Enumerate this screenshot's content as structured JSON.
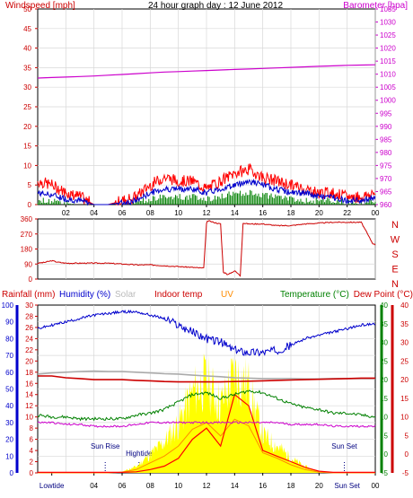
{
  "chart_data": [
    {
      "type": "line",
      "title": "24 hour graph day : 12 June 2012",
      "left_label": "Windspeed [mph]",
      "right_label": "Barometer [hpa]",
      "y_left_ticks": [
        "0",
        "5",
        "10",
        "15",
        "20",
        "25",
        "30",
        "35",
        "40",
        "45",
        "50"
      ],
      "y_right_ticks": [
        "960",
        "965",
        "970",
        "975",
        "980",
        "985",
        "990",
        "995",
        "1000",
        "1005",
        "1010",
        "1015",
        "1020",
        "1025",
        "1030",
        "1035"
      ],
      "ylim_left": [
        0,
        50
      ],
      "ylim_right": [
        960,
        1035
      ],
      "x_tick_labels": [
        "02",
        "04",
        "06",
        "08",
        "10",
        "12",
        "14",
        "16",
        "18",
        "20",
        "22",
        "00"
      ],
      "hours": [
        0,
        1,
        2,
        3,
        4,
        5,
        6,
        7,
        8,
        9,
        10,
        11,
        12,
        13,
        14,
        15,
        16,
        17,
        18,
        19,
        20,
        21,
        22,
        23,
        24
      ],
      "colors": {
        "gust": "#ff0000",
        "average": "#0000cc",
        "wind_low": "#008000",
        "barometer": "#cc00cc",
        "left_axis": "#cc0000",
        "right_axis": "#cc00cc"
      },
      "series": [
        {
          "name": "Windspeed",
          "values": [
            6,
            5,
            3,
            2,
            0,
            0,
            1,
            2,
            5,
            7,
            6,
            6,
            4,
            6,
            8,
            9,
            7,
            6,
            5,
            4,
            3,
            3,
            2,
            2,
            3
          ]
        },
        {
          "name": "Barometer",
          "values": [
            1008.5,
            1008.7,
            1008.9,
            1009.1,
            1009.3,
            1009.6,
            1009.9,
            1010.2,
            1010.5,
            1010.8,
            1011.0,
            1011.2,
            1011.4,
            1011.6,
            1011.8,
            1012.0,
            1012.2,
            1012.4,
            1012.6,
            1012.8,
            1013.0,
            1013.2,
            1013.4,
            1013.5,
            1013.6
          ]
        }
      ],
      "wind_average": [
        3,
        2.5,
        1.5,
        1,
        0,
        0,
        0.5,
        1,
        3,
        4,
        4,
        4,
        3,
        4,
        5,
        6,
        5,
        4,
        3,
        3,
        2,
        2,
        1,
        1,
        2
      ],
      "wind_low": [
        1,
        1,
        0.5,
        0,
        0,
        0,
        0,
        0.5,
        1.5,
        2,
        2,
        2,
        1.5,
        2,
        3,
        3,
        2.5,
        2,
        1.5,
        1,
        1,
        1,
        0.5,
        0.5,
        1
      ]
    },
    {
      "type": "line",
      "name": "Wind direction",
      "y_tick_labels": [
        "0",
        "90",
        "180",
        "270",
        "360"
      ],
      "right_labels": [
        "N",
        "W",
        "S",
        "E",
        "N"
      ],
      "ylim": [
        0,
        360
      ],
      "x_tick_labels": [
        "02",
        "04",
        "06",
        "08",
        "10",
        "12",
        "14",
        "16",
        "18",
        "20",
        "22",
        "00"
      ],
      "x": [
        0,
        0.5,
        1,
        1.5,
        2,
        3,
        4,
        5,
        6,
        7,
        8,
        9,
        10,
        11,
        11.8,
        12,
        12.1,
        12.5,
        13,
        13.2,
        13.4,
        13.5,
        14,
        14.4,
        14.6,
        15,
        16,
        17,
        18,
        19,
        20,
        21,
        22,
        23,
        23.8,
        24
      ],
      "values": [
        95,
        100,
        110,
        100,
        95,
        95,
        95,
        95,
        90,
        85,
        85,
        80,
        75,
        70,
        65,
        330,
        350,
        340,
        330,
        40,
        35,
        25,
        50,
        20,
        335,
        330,
        330,
        320,
        320,
        330,
        335,
        340,
        340,
        340,
        215,
        205
      ],
      "color": "#cc0000"
    },
    {
      "type": "line",
      "labels": {
        "rainfall": "Rainfall (mm)",
        "humidity": "Humidity (%)",
        "solar": "Solar",
        "indoor": "Indoor temp",
        "uv": "UV",
        "temperature": "Temperature (°C)",
        "dewpoint": "Dew Point (°C)"
      },
      "humidity_ticks": [
        "0",
        "10",
        "20",
        "30",
        "40",
        "50",
        "60",
        "70",
        "80",
        "90",
        "100"
      ],
      "rain_ticks": [
        "0",
        "2",
        "4",
        "6",
        "8",
        "10",
        "12",
        "14",
        "16",
        "18",
        "20",
        "22",
        "24",
        "26",
        "28",
        "30"
      ],
      "temp_ticks": [
        "-5",
        "0",
        "5",
        "10",
        "15",
        "20",
        "25",
        "30",
        "35",
        "40"
      ],
      "ylim_humidity": [
        0,
        100
      ],
      "ylim_rain": [
        0,
        30
      ],
      "ylim_temp": [
        -5,
        40
      ],
      "x_tick_labels": [
        "Lowtide",
        "04",
        "06",
        "08",
        "10",
        "12",
        "14",
        "16",
        "18",
        "20",
        "Sun Set",
        "00"
      ],
      "events": [
        {
          "label": "Sun Rise",
          "hour": 4.8
        },
        {
          "label": "Hightide",
          "hour": 7.2
        },
        {
          "label": "Sun Set",
          "hour": 21.8
        }
      ],
      "hours": [
        0,
        1,
        2,
        3,
        4,
        5,
        6,
        7,
        8,
        9,
        10,
        11,
        12,
        13,
        14,
        15,
        16,
        17,
        18,
        19,
        20,
        21,
        22,
        23,
        24
      ],
      "humidity": [
        86,
        88,
        90,
        92,
        94,
        95,
        96,
        96,
        94,
        92,
        88,
        84,
        80,
        78,
        73,
        72,
        72,
        73,
        76,
        80,
        82,
        84,
        86,
        88,
        89
      ],
      "indoor_temp": [
        21,
        21,
        20.5,
        20.3,
        20,
        20,
        20,
        19.8,
        19.7,
        19.5,
        19.4,
        19.4,
        19.4,
        19.4,
        19.5,
        19.6,
        19.7,
        19.8,
        19.9,
        20,
        20.1,
        20.2,
        20.3,
        20.4,
        20.4
      ],
      "solar_line": [
        21.5,
        21.8,
        22,
        22.2,
        22.3,
        22.2,
        22.2,
        22,
        21.8,
        21.6,
        21.5,
        21.2,
        21,
        20.8,
        20.5,
        20.4,
        20.3,
        20.3,
        20.3,
        20.2,
        20.2,
        20.3,
        20.3,
        20.3,
        20.3
      ],
      "temperature": [
        10.5,
        10,
        10,
        9.5,
        9.5,
        9.5,
        9.5,
        10.5,
        11,
        12,
        14,
        16,
        16.5,
        15,
        16,
        17,
        16.5,
        15,
        13.5,
        12.5,
        12,
        11,
        11,
        10.5,
        10
      ],
      "dew_point": [
        8.5,
        8.5,
        8,
        8,
        7.5,
        7.5,
        7.5,
        8,
        8.5,
        8.5,
        8.5,
        8.5,
        8.5,
        8.5,
        8.5,
        8.5,
        8.5,
        8.5,
        8,
        8,
        8,
        7.5,
        7.5,
        7.5,
        7.5
      ],
      "rainfall": [
        0.1,
        0.1,
        0.1,
        0.1,
        0.1,
        0.1,
        0.1,
        0.2,
        0.6,
        1.2,
        2.6,
        6,
        8,
        4.8,
        14,
        12,
        4,
        3,
        2,
        1,
        0.3,
        0.1,
        0.1,
        0.1,
        0.1
      ],
      "uv": [
        0,
        0,
        0,
        0,
        0,
        0,
        0.1,
        0.5,
        1.5,
        2.5,
        4,
        6.5,
        7.5,
        5.5,
        8,
        7,
        3,
        2.2,
        1.2,
        0.5,
        0.1,
        0,
        0,
        0,
        0
      ],
      "colors": {
        "humidity": "#0000cc",
        "rainfall": "#ff0000",
        "indoor": "#cc0000",
        "solar": "#aaaaaa",
        "temperature": "#008000",
        "dewpoint": "#cc00cc",
        "uv_fill": "#ffff00",
        "uv_line": "#ff8c00",
        "left_axis": "#0000cc",
        "rain_axis": "#cc0000",
        "temp_axis": "#008000",
        "right_axis": "#cc0000"
      }
    }
  ]
}
